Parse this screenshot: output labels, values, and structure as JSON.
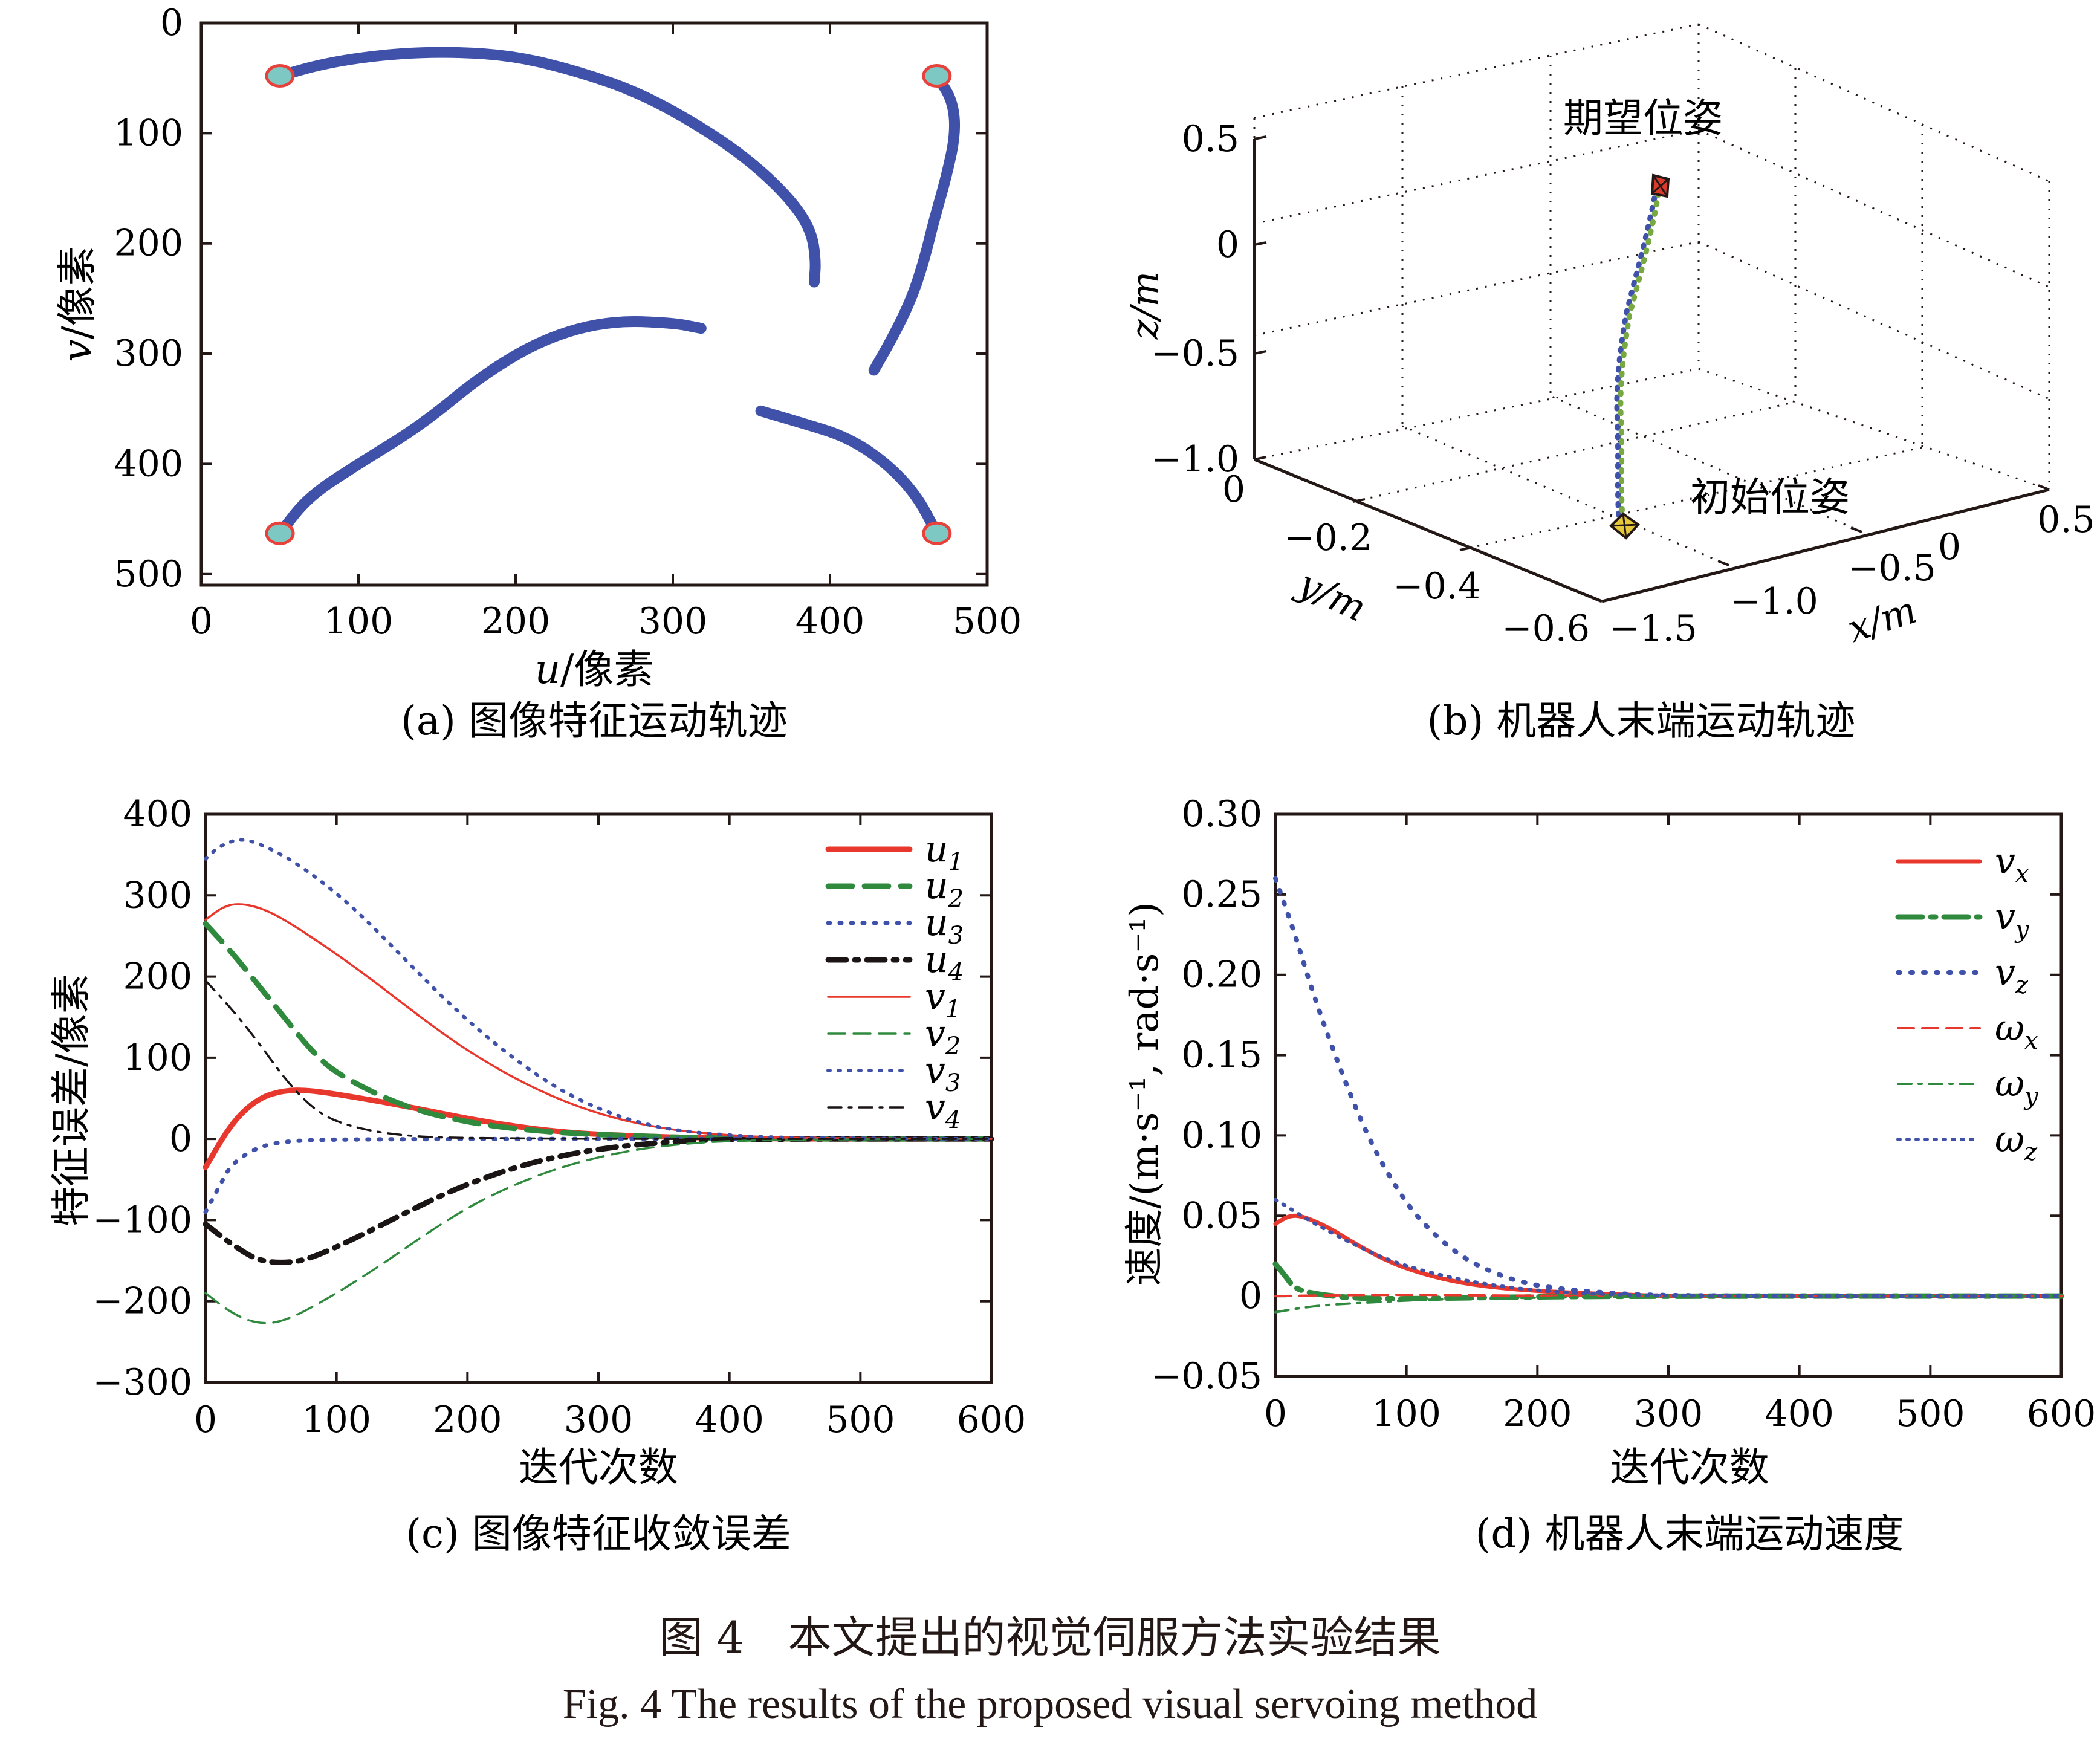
{
  "figure": {
    "caption_zh": "图 4　本文提出的视觉伺服方法实验结果",
    "caption_en": "Fig. 4   The results of the proposed visual servoing method"
  },
  "chart_data": [
    {
      "id": "a",
      "type": "scatter",
      "subtitle": "(a) 图像特征运动轨迹",
      "xlabel": "u/像素",
      "ylabel": "v/像素",
      "xlim": [
        0,
        500
      ],
      "ylim": [
        0,
        510
      ],
      "y_inverted": true,
      "xticks": [
        "0",
        "100",
        "200",
        "300",
        "400",
        "500"
      ],
      "yticks": [
        "0",
        "100",
        "200",
        "300",
        "400",
        "500"
      ],
      "grid": false,
      "colors": {
        "trajectory": "#3f51a9",
        "marker_fill": "#7ec8c4",
        "marker_edge": "#e8403a"
      },
      "trajectories": [
        {
          "points": [
            [
              50,
              48
            ],
            [
              80,
              36
            ],
            [
              120,
              28
            ],
            [
              160,
              26
            ],
            [
              200,
              30
            ],
            [
              240,
              44
            ],
            [
              280,
              64
            ],
            [
              320,
              96
            ],
            [
              350,
              126
            ],
            [
              375,
              160
            ],
            [
              388,
              188
            ],
            [
              391,
              215
            ],
            [
              390,
              235
            ]
          ]
        },
        {
          "points": [
            [
              468,
              48
            ],
            [
              478,
              70
            ],
            [
              480,
              100
            ],
            [
              474,
              140
            ],
            [
              466,
              180
            ],
            [
              460,
              215
            ],
            [
              452,
              250
            ],
            [
              440,
              285
            ],
            [
              428,
              315
            ]
          ]
        },
        {
          "points": [
            [
              50,
              463
            ],
            [
              68,
              430
            ],
            [
              100,
              400
            ],
            [
              140,
              365
            ],
            [
              180,
              318
            ],
            [
              220,
              285
            ],
            [
              260,
              270
            ],
            [
              300,
              272
            ],
            [
              318,
              277
            ]
          ]
        },
        {
          "points": [
            [
              356,
              352
            ],
            [
              380,
              362
            ],
            [
              410,
              375
            ],
            [
              435,
              398
            ],
            [
              455,
              428
            ],
            [
              468,
              463
            ]
          ]
        }
      ],
      "markers": [
        [
          50,
          48
        ],
        [
          468,
          48
        ],
        [
          50,
          463
        ],
        [
          468,
          463
        ]
      ]
    },
    {
      "id": "b",
      "type": "scatter",
      "subtitle": "(b) 机器人末端运动轨迹",
      "xlabel": "x/m",
      "ylabel": "y/m",
      "zlabel": "z/m",
      "xticks": [
        "−1.5",
        "−1.0",
        "−0.5",
        "0",
        "0.5"
      ],
      "yticks": [
        "0",
        "−0.2",
        "−0.4",
        "−0.6"
      ],
      "zticks": [
        "0.5",
        "0",
        "−0.5",
        "−1.0"
      ],
      "grid": true,
      "annotations": [
        "期望位姿",
        "初始位姿"
      ],
      "colors": {
        "path_a": "#3f51a9",
        "path_b": "#78a842",
        "desired": "#d93a2b",
        "initial": "#e6c93a"
      }
    },
    {
      "id": "c",
      "type": "line",
      "subtitle": "(c) 图像特征收敛误差",
      "xlabel": "迭代次数",
      "ylabel": "特征误差/像素",
      "xlim": [
        0,
        600
      ],
      "ylim": [
        -300,
        400
      ],
      "xticks": [
        "0",
        "100",
        "200",
        "300",
        "400",
        "500",
        "600"
      ],
      "yticks": [
        "400",
        "300",
        "200",
        "100",
        "0",
        "−100",
        "−200",
        "−300"
      ],
      "grid": false,
      "legend": "top-right",
      "series": [
        {
          "name": "u",
          "sub": "1",
          "color": "#e8382d",
          "dash": "",
          "width": 9,
          "points": [
            [
              0,
              -35
            ],
            [
              20,
              20
            ],
            [
              40,
              50
            ],
            [
              60,
              60
            ],
            [
              80,
              60
            ],
            [
              120,
              50
            ],
            [
              160,
              38
            ],
            [
              200,
              25
            ],
            [
              250,
              12
            ],
            [
              300,
              5
            ],
            [
              400,
              0
            ],
            [
              600,
              0
            ]
          ]
        },
        {
          "name": "u",
          "sub": "2",
          "color": "#2f8a3e",
          "dash": "40 20",
          "width": 9,
          "points": [
            [
              0,
              265
            ],
            [
              20,
              230
            ],
            [
              40,
              190
            ],
            [
              60,
              150
            ],
            [
              80,
              110
            ],
            [
              100,
              80
            ],
            [
              150,
              40
            ],
            [
              200,
              20
            ],
            [
              250,
              10
            ],
            [
              300,
              5
            ],
            [
              400,
              0
            ],
            [
              600,
              0
            ]
          ]
        },
        {
          "name": "u",
          "sub": "3",
          "color": "#3f51a9",
          "dash": "3 16",
          "width": 7,
          "points": [
            [
              0,
              -90
            ],
            [
              10,
              -60
            ],
            [
              20,
              -30
            ],
            [
              40,
              -10
            ],
            [
              60,
              -3
            ],
            [
              100,
              0
            ],
            [
              600,
              0
            ]
          ]
        },
        {
          "name": "u",
          "sub": "4",
          "color": "#1a1414",
          "dash": "30 14 6 14",
          "width": 9,
          "points": [
            [
              0,
              -105
            ],
            [
              20,
              -130
            ],
            [
              40,
              -150
            ],
            [
              60,
              -153
            ],
            [
              80,
              -148
            ],
            [
              120,
              -118
            ],
            [
              160,
              -85
            ],
            [
              200,
              -55
            ],
            [
              250,
              -28
            ],
            [
              300,
              -12
            ],
            [
              350,
              -4
            ],
            [
              400,
              0
            ],
            [
              600,
              0
            ]
          ]
        },
        {
          "name": "v",
          "sub": "1",
          "color": "#e8382d",
          "dash": "",
          "width": 3.5,
          "points": [
            [
              0,
              270
            ],
            [
              15,
              288
            ],
            [
              30,
              290
            ],
            [
              50,
              280
            ],
            [
              80,
              250
            ],
            [
              120,
              205
            ],
            [
              160,
              155
            ],
            [
              200,
              108
            ],
            [
              250,
              62
            ],
            [
              300,
              30
            ],
            [
              350,
              12
            ],
            [
              400,
              4
            ],
            [
              450,
              1
            ],
            [
              600,
              0
            ]
          ]
        },
        {
          "name": "v",
          "sub": "2",
          "color": "#2f8a3e",
          "dash": "28 14",
          "width": 3.5,
          "points": [
            [
              0,
              -190
            ],
            [
              20,
              -215
            ],
            [
              40,
              -228
            ],
            [
              60,
              -225
            ],
            [
              90,
              -200
            ],
            [
              130,
              -160
            ],
            [
              170,
              -115
            ],
            [
              210,
              -75
            ],
            [
              260,
              -40
            ],
            [
              310,
              -18
            ],
            [
              360,
              -6
            ],
            [
              420,
              -1
            ],
            [
              600,
              0
            ]
          ]
        },
        {
          "name": "v",
          "sub": "3",
          "color": "#3f51a9",
          "dash": "3 14",
          "width": 6,
          "points": [
            [
              0,
              345
            ],
            [
              10,
              360
            ],
            [
              25,
              370
            ],
            [
              40,
              365
            ],
            [
              70,
              340
            ],
            [
              110,
              290
            ],
            [
              150,
              225
            ],
            [
              190,
              160
            ],
            [
              230,
              105
            ],
            [
              270,
              60
            ],
            [
              310,
              30
            ],
            [
              350,
              12
            ],
            [
              400,
              4
            ],
            [
              450,
              1
            ],
            [
              600,
              0
            ]
          ]
        },
        {
          "name": "v",
          "sub": "4",
          "color": "#1a1414",
          "dash": "22 12 5 12",
          "width": 3.5,
          "points": [
            [
              0,
              195
            ],
            [
              20,
              160
            ],
            [
              40,
              120
            ],
            [
              60,
              75
            ],
            [
              80,
              40
            ],
            [
              100,
              20
            ],
            [
              140,
              5
            ],
            [
              200,
              0
            ],
            [
              600,
              0
            ]
          ]
        }
      ]
    },
    {
      "id": "d",
      "type": "line",
      "subtitle": "(d) 机器人末端运动速度",
      "xlabel": "迭代次数",
      "ylabel": "速度/(m·s⁻¹, rad·s⁻¹)",
      "xlim": [
        0,
        600
      ],
      "ylim": [
        -0.05,
        0.3
      ],
      "xticks": [
        "0",
        "100",
        "200",
        "300",
        "400",
        "500",
        "600"
      ],
      "yticks": [
        "0.30",
        "0.25",
        "0.20",
        "0.15",
        "0.10",
        "0.05",
        "0",
        "−0.05"
      ],
      "grid": false,
      "legend": "top-right",
      "series": [
        {
          "name": "v",
          "sub": "x",
          "greek": false,
          "color": "#e8382d",
          "dash": "",
          "width": 7,
          "points": [
            [
              0,
              0.045
            ],
            [
              10,
              0.05
            ],
            [
              20,
              0.05
            ],
            [
              40,
              0.043
            ],
            [
              60,
              0.033
            ],
            [
              80,
              0.024
            ],
            [
              100,
              0.017
            ],
            [
              130,
              0.01
            ],
            [
              160,
              0.006
            ],
            [
              200,
              0.003
            ],
            [
              260,
              0.001
            ],
            [
              300,
              0
            ],
            [
              600,
              0
            ]
          ]
        },
        {
          "name": "v",
          "sub": "y",
          "greek": false,
          "color": "#2f8a3e",
          "dash": "40 14 8 14",
          "width": 9,
          "points": [
            [
              0,
              0.02
            ],
            [
              8,
              0.012
            ],
            [
              15,
              0.004
            ],
            [
              40,
              0
            ],
            [
              80,
              -0.002
            ],
            [
              150,
              -0.001
            ],
            [
              250,
              0
            ],
            [
              600,
              0
            ]
          ]
        },
        {
          "name": "v",
          "sub": "z",
          "greek": false,
          "color": "#3f51a9",
          "dash": "3 18",
          "width": 8,
          "points": [
            [
              0,
              0.26
            ],
            [
              15,
              0.225
            ],
            [
              30,
              0.185
            ],
            [
              50,
              0.14
            ],
            [
              70,
              0.1
            ],
            [
              90,
              0.07
            ],
            [
              110,
              0.047
            ],
            [
              140,
              0.025
            ],
            [
              170,
              0.013
            ],
            [
              200,
              0.006
            ],
            [
              250,
              0.002
            ],
            [
              300,
              0
            ],
            [
              600,
              0
            ]
          ]
        },
        {
          "name": "ω",
          "sub": "x",
          "greek": true,
          "color": "#e8382d",
          "dash": "26 14",
          "width": 4,
          "points": [
            [
              0,
              0
            ],
            [
              100,
              0.001
            ],
            [
              200,
              0
            ],
            [
              600,
              0
            ]
          ]
        },
        {
          "name": "ω",
          "sub": "y",
          "greek": true,
          "color": "#2f8a3e",
          "dash": "22 12 5 12",
          "width": 4,
          "points": [
            [
              0,
              -0.01
            ],
            [
              30,
              -0.006
            ],
            [
              70,
              -0.004
            ],
            [
              120,
              -0.002
            ],
            [
              200,
              -0.001
            ],
            [
              300,
              0
            ],
            [
              600,
              0
            ]
          ]
        },
        {
          "name": "ω",
          "sub": "z",
          "greek": true,
          "color": "#3f51a9",
          "dash": "3 12",
          "width": 6,
          "points": [
            [
              0,
              0.06
            ],
            [
              10,
              0.055
            ],
            [
              30,
              0.045
            ],
            [
              60,
              0.032
            ],
            [
              90,
              0.021
            ],
            [
              130,
              0.012
            ],
            [
              170,
              0.006
            ],
            [
              220,
              0.002
            ],
            [
              300,
              0
            ],
            [
              600,
              0
            ]
          ]
        }
      ]
    }
  ]
}
